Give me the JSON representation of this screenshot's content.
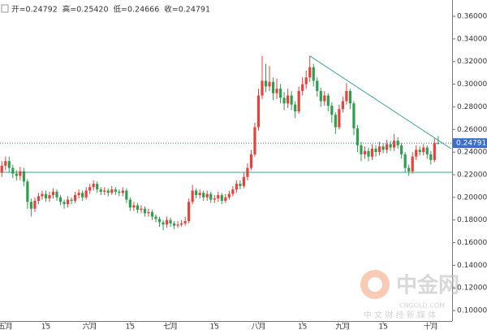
{
  "chart_data": {
    "type": "candlestick",
    "header": [
      "开=0.24792",
      "高=0.25420",
      "低=0.24666",
      "收=0.24791"
    ],
    "watermark": {
      "logo": "中金网",
      "site": "CNGOLD.COM",
      "slogan": "中 文 财 经 新 媒 体"
    },
    "up_color": "#e8413c",
    "down_color": "#2e9e4f",
    "ylim": [
      0.0907,
      0.3744
    ],
    "yticks": [
      {
        "value": 0.1,
        "label": "0.10000"
      },
      {
        "value": 0.12,
        "label": "0.12000"
      },
      {
        "value": 0.14,
        "label": "0.14000"
      },
      {
        "value": 0.16,
        "label": "0.16000"
      },
      {
        "value": 0.18,
        "label": "0.18000"
      },
      {
        "value": 0.2,
        "label": "0.20000"
      },
      {
        "value": 0.22,
        "label": "0.22000"
      },
      {
        "value": 0.24,
        "label": "0.24000"
      },
      {
        "value": 0.26,
        "label": "0.26000"
      },
      {
        "value": 0.28,
        "label": "0.28000"
      },
      {
        "value": 0.3,
        "label": "0.30000"
      },
      {
        "value": 0.32,
        "label": "0.32000"
      },
      {
        "value": 0.34,
        "label": "0.34000"
      },
      {
        "value": 0.36,
        "label": "0.36000"
      }
    ],
    "xlim": [
      -0.5,
      122.8
    ],
    "xticks": [
      {
        "value": 1,
        "label": "五月"
      },
      {
        "value": 12,
        "label": "15"
      },
      {
        "value": 24,
        "label": "六月"
      },
      {
        "value": 35,
        "label": "15"
      },
      {
        "value": 46,
        "label": "七月"
      },
      {
        "value": 58,
        "label": "15"
      },
      {
        "value": 70,
        "label": "八月"
      },
      {
        "value": 82,
        "label": "15"
      },
      {
        "value": 93,
        "label": "九月"
      },
      {
        "value": 104,
        "label": "15"
      },
      {
        "value": 117,
        "label": "十月"
      }
    ],
    "last_price": {
      "value": 0.24791,
      "label": "0.24791"
    },
    "support_line": 0.2221,
    "trendline": {
      "x": [
        84,
        122.5
      ],
      "y": [
        0.325,
        0.243
      ]
    },
    "open": [
      0.222,
      0.228,
      0.232,
      0.226,
      0.221,
      0.219,
      0.223,
      0.214,
      0.196,
      0.19,
      0.197,
      0.201,
      0.203,
      0.199,
      0.202,
      0.205,
      0.2,
      0.196,
      0.194,
      0.198,
      0.197,
      0.202,
      0.204,
      0.2,
      0.206,
      0.209,
      0.212,
      0.207,
      0.205,
      0.206,
      0.204,
      0.207,
      0.205,
      0.204,
      0.206,
      0.198,
      0.191,
      0.193,
      0.189,
      0.19,
      0.186,
      0.187,
      0.183,
      0.181,
      0.178,
      0.176,
      0.18,
      0.177,
      0.175,
      0.176,
      0.177,
      0.179,
      0.196,
      0.206,
      0.202,
      0.204,
      0.2,
      0.203,
      0.198,
      0.199,
      0.202,
      0.197,
      0.2,
      0.203,
      0.207,
      0.212,
      0.21,
      0.218,
      0.226,
      0.238,
      0.262,
      0.29,
      0.303,
      0.298,
      0.302,
      0.292,
      0.296,
      0.288,
      0.283,
      0.29,
      0.282,
      0.276,
      0.294,
      0.3,
      0.306,
      0.315,
      0.303,
      0.294,
      0.285,
      0.29,
      0.281,
      0.273,
      0.262,
      0.278,
      0.285,
      0.294,
      0.283,
      0.261,
      0.246,
      0.238,
      0.241,
      0.236,
      0.243,
      0.24,
      0.245,
      0.242,
      0.247,
      0.244,
      0.25,
      0.246,
      0.238,
      0.226,
      0.223,
      0.236,
      0.242,
      0.24,
      0.244,
      0.238,
      0.233,
      0.24792
    ],
    "high": [
      0.232,
      0.236,
      0.236,
      0.229,
      0.224,
      0.227,
      0.226,
      0.216,
      0.199,
      0.2,
      0.204,
      0.206,
      0.206,
      0.205,
      0.208,
      0.207,
      0.202,
      0.198,
      0.201,
      0.2,
      0.205,
      0.207,
      0.206,
      0.209,
      0.212,
      0.215,
      0.214,
      0.209,
      0.209,
      0.208,
      0.21,
      0.209,
      0.207,
      0.209,
      0.208,
      0.2,
      0.196,
      0.195,
      0.193,
      0.192,
      0.19,
      0.189,
      0.185,
      0.183,
      0.18,
      0.183,
      0.182,
      0.179,
      0.179,
      0.18,
      0.183,
      0.199,
      0.211,
      0.208,
      0.207,
      0.206,
      0.206,
      0.205,
      0.202,
      0.205,
      0.204,
      0.203,
      0.206,
      0.21,
      0.215,
      0.215,
      0.222,
      0.23,
      0.242,
      0.266,
      0.296,
      0.325,
      0.318,
      0.316,
      0.306,
      0.305,
      0.3,
      0.293,
      0.296,
      0.294,
      0.285,
      0.298,
      0.306,
      0.312,
      0.325,
      0.318,
      0.306,
      0.297,
      0.294,
      0.292,
      0.284,
      0.275,
      0.282,
      0.289,
      0.301,
      0.296,
      0.285,
      0.264,
      0.249,
      0.245,
      0.244,
      0.247,
      0.246,
      0.249,
      0.248,
      0.251,
      0.25,
      0.256,
      0.253,
      0.248,
      0.24,
      0.229,
      0.24,
      0.246,
      0.245,
      0.247,
      0.246,
      0.241,
      0.252,
      0.2542
    ],
    "low": [
      0.218,
      0.224,
      0.222,
      0.217,
      0.215,
      0.215,
      0.21,
      0.19,
      0.183,
      0.187,
      0.194,
      0.198,
      0.196,
      0.196,
      0.199,
      0.197,
      0.193,
      0.19,
      0.191,
      0.194,
      0.195,
      0.199,
      0.197,
      0.198,
      0.203,
      0.206,
      0.204,
      0.202,
      0.202,
      0.201,
      0.202,
      0.202,
      0.201,
      0.201,
      0.195,
      0.188,
      0.188,
      0.186,
      0.186,
      0.183,
      0.183,
      0.18,
      0.178,
      0.174,
      0.171,
      0.173,
      0.174,
      0.172,
      0.173,
      0.174,
      0.175,
      0.177,
      0.194,
      0.199,
      0.199,
      0.197,
      0.197,
      0.195,
      0.195,
      0.196,
      0.194,
      0.195,
      0.198,
      0.201,
      0.204,
      0.207,
      0.208,
      0.215,
      0.224,
      0.236,
      0.259,
      0.287,
      0.293,
      0.294,
      0.286,
      0.287,
      0.283,
      0.277,
      0.279,
      0.277,
      0.27,
      0.274,
      0.29,
      0.296,
      0.302,
      0.298,
      0.289,
      0.28,
      0.281,
      0.276,
      0.266,
      0.256,
      0.26,
      0.275,
      0.282,
      0.278,
      0.255,
      0.24,
      0.232,
      0.234,
      0.232,
      0.233,
      0.236,
      0.237,
      0.239,
      0.239,
      0.241,
      0.241,
      0.243,
      0.234,
      0.222,
      0.219,
      0.221,
      0.233,
      0.237,
      0.237,
      0.234,
      0.229,
      0.231,
      0.24666
    ],
    "close": [
      0.228,
      0.232,
      0.226,
      0.221,
      0.219,
      0.223,
      0.214,
      0.196,
      0.19,
      0.197,
      0.201,
      0.203,
      0.199,
      0.202,
      0.205,
      0.2,
      0.196,
      0.194,
      0.198,
      0.197,
      0.202,
      0.204,
      0.2,
      0.206,
      0.209,
      0.212,
      0.207,
      0.205,
      0.206,
      0.204,
      0.207,
      0.205,
      0.204,
      0.206,
      0.198,
      0.191,
      0.193,
      0.189,
      0.19,
      0.186,
      0.187,
      0.183,
      0.181,
      0.178,
      0.176,
      0.18,
      0.177,
      0.175,
      0.176,
      0.177,
      0.179,
      0.196,
      0.206,
      0.202,
      0.204,
      0.2,
      0.203,
      0.198,
      0.199,
      0.202,
      0.197,
      0.2,
      0.203,
      0.207,
      0.212,
      0.21,
      0.218,
      0.226,
      0.238,
      0.262,
      0.29,
      0.303,
      0.298,
      0.302,
      0.292,
      0.296,
      0.288,
      0.283,
      0.29,
      0.282,
      0.276,
      0.294,
      0.3,
      0.306,
      0.315,
      0.303,
      0.294,
      0.285,
      0.29,
      0.281,
      0.273,
      0.262,
      0.278,
      0.285,
      0.294,
      0.283,
      0.261,
      0.246,
      0.238,
      0.241,
      0.236,
      0.243,
      0.24,
      0.245,
      0.242,
      0.247,
      0.244,
      0.25,
      0.246,
      0.238,
      0.226,
      0.223,
      0.236,
      0.242,
      0.24,
      0.244,
      0.238,
      0.233,
      0.2479,
      0.24791
    ]
  }
}
